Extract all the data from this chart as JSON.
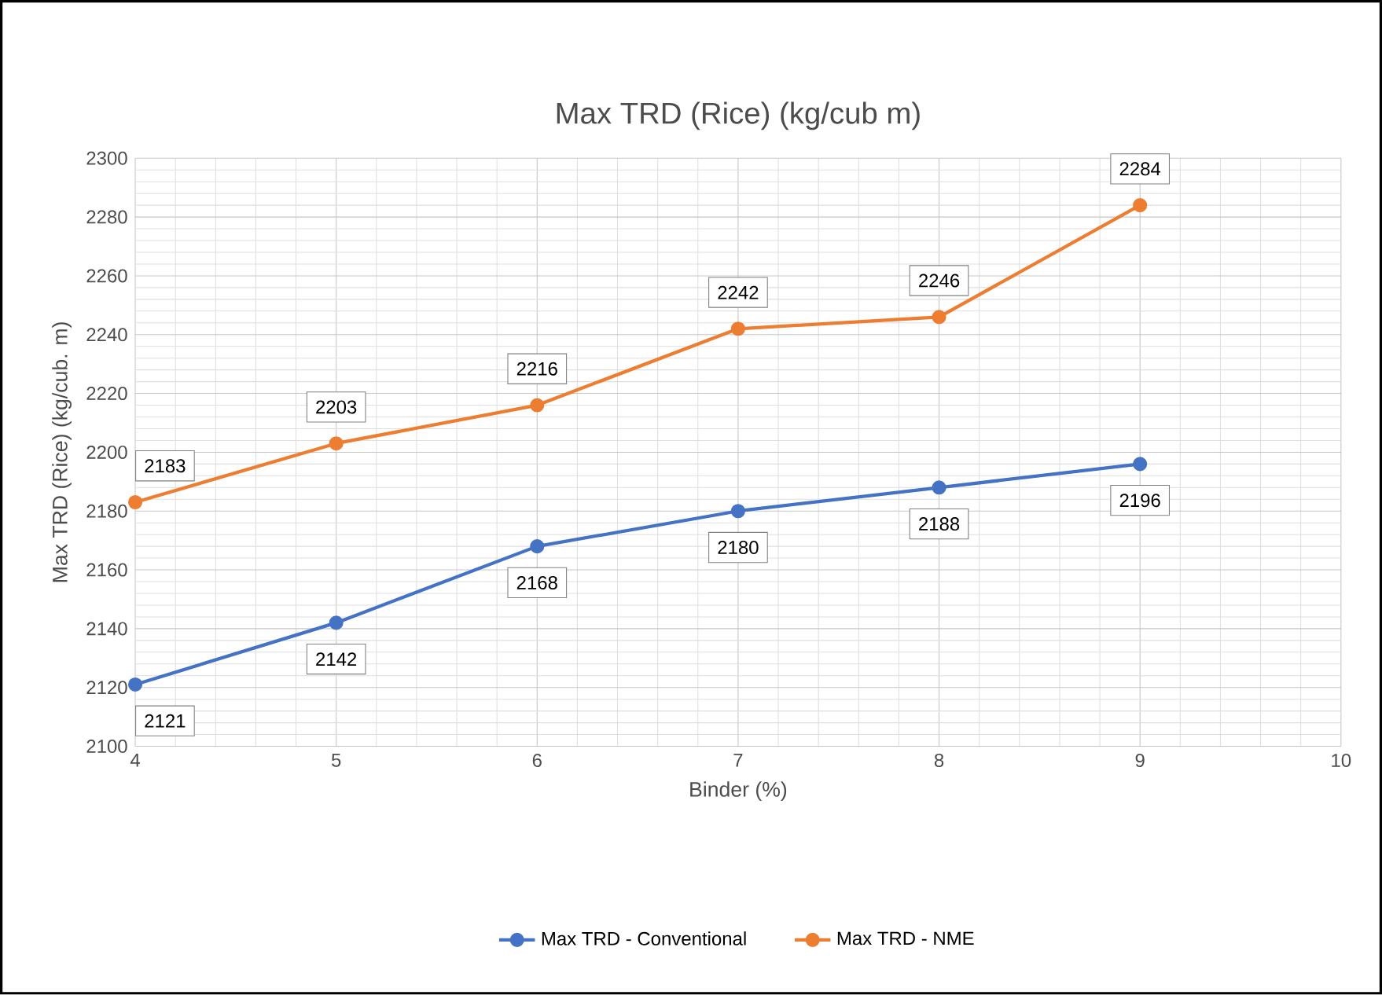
{
  "chart_data": {
    "type": "line",
    "title": "Max TRD (Rice) (kg/cub m)",
    "xlabel": "Binder (%)",
    "ylabel": "Max TRD (Rice) (kg/cub. m)",
    "x": [
      4,
      5,
      6,
      7,
      8,
      9
    ],
    "series": [
      {
        "name": "Max TRD - Conventional",
        "color": "#4472c4",
        "values": [
          2121,
          2142,
          2168,
          2180,
          2188,
          2196
        ]
      },
      {
        "name": "Max TRD - NME",
        "color": "#ed7d31",
        "values": [
          2183,
          2203,
          2216,
          2242,
          2246,
          2284
        ]
      }
    ],
    "xlim": [
      4,
      10
    ],
    "xticks": [
      4,
      5,
      6,
      7,
      8,
      9,
      10
    ],
    "ylim": [
      2100,
      2300
    ],
    "yticks": [
      2100,
      2120,
      2140,
      2160,
      2180,
      2200,
      2220,
      2240,
      2260,
      2280,
      2300
    ],
    "grid": true,
    "legend": "bottom",
    "marker": "circle",
    "line_style": "solid",
    "data_labels": true
  }
}
